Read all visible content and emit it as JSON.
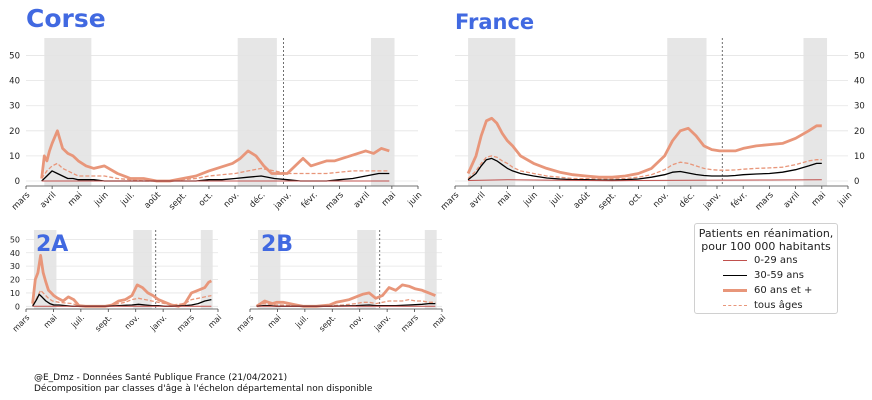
{
  "colors": {
    "title": "#4169e1",
    "age_0_29": "#c0504d",
    "age_30_59": "#000000",
    "age_60_plus": "#e8967a",
    "all_ages": "#e8967a",
    "shade": "#e6e6e6",
    "grid": "#e4e4e4"
  },
  "legend": {
    "title_line1": "Patients en réanimation,",
    "title_line2": "pour 100 000 habitants",
    "items": [
      {
        "key": "age_0_29",
        "label": "0-29 ans"
      },
      {
        "key": "age_30_59",
        "label": "30-59 ans"
      },
      {
        "key": "age_60_plus",
        "label": "60 ans et +"
      },
      {
        "key": "all_ages",
        "label": "tous âges"
      }
    ]
  },
  "credits": {
    "line1": "@E_Dmz - Données Santé Publique France (21/04/2021)",
    "line2": "Décomposition par classes d'âge à l'échelon départemental non disponible"
  },
  "chart_data": [
    {
      "type": "line",
      "title": "Corse",
      "x_ticks": [
        "mars",
        "avril",
        "mai",
        "juin",
        "juil.",
        "août",
        "sept.",
        "oct.",
        "nov.",
        "déc.",
        "janv.",
        "févr.",
        "mars",
        "avril",
        "mai",
        "juin"
      ],
      "y_ticks": [
        0,
        10,
        20,
        30,
        40,
        50
      ],
      "ylim": [
        -2,
        57
      ],
      "xlim": [
        0,
        15
      ],
      "shaded": [
        [
          0.7,
          2.5
        ],
        [
          8.1,
          9.6
        ],
        [
          13.2,
          14.1
        ]
      ],
      "vline": 9.85,
      "grid": true,
      "series": [
        {
          "key": "age_60_plus",
          "x": [
            0.6,
            0.7,
            0.8,
            0.9,
            1.0,
            1.2,
            1.4,
            1.6,
            1.8,
            2.0,
            2.3,
            2.6,
            3.0,
            3.5,
            4.0,
            4.5,
            5.0,
            5.5,
            6.0,
            6.5,
            7.0,
            7.3,
            7.6,
            7.9,
            8.2,
            8.5,
            8.8,
            9.1,
            9.4,
            9.7,
            10.0,
            10.3,
            10.6,
            10.9,
            11.2,
            11.5,
            11.8,
            12.1,
            12.4,
            12.7,
            13.0,
            13.3,
            13.6,
            13.9
          ],
          "y": [
            1,
            10,
            8,
            12,
            15,
            20,
            13,
            11,
            10,
            8,
            6,
            5,
            6,
            3,
            1,
            1,
            0,
            0,
            1,
            2,
            4,
            5,
            6,
            7,
            9,
            12,
            10,
            6,
            3,
            3,
            3,
            6,
            9,
            6,
            7,
            8,
            8,
            9,
            10,
            11,
            12,
            11,
            13,
            12
          ]
        },
        {
          "key": "all_ages",
          "x": [
            0.6,
            0.8,
            1.0,
            1.2,
            1.4,
            1.6,
            1.8,
            2.0,
            2.3,
            2.6,
            3.0,
            3.5,
            4.0,
            4.5,
            5.0,
            5.5,
            6.0,
            6.5,
            7.0,
            7.5,
            8.0,
            8.5,
            9.0,
            9.5,
            10.0,
            10.5,
            11.0,
            11.5,
            12.0,
            12.5,
            13.0,
            13.5,
            13.9
          ],
          "y": [
            1,
            4,
            6,
            7,
            5,
            4,
            3,
            2,
            2,
            2,
            2,
            1,
            0.5,
            0,
            0,
            0,
            0.5,
            1,
            2,
            2.5,
            3,
            4,
            5,
            4,
            3,
            3,
            3,
            3,
            3.5,
            4,
            4,
            4,
            4
          ]
        },
        {
          "key": "age_30_59",
          "x": [
            0.6,
            0.8,
            1.0,
            1.2,
            1.4,
            1.6,
            1.8,
            2.0,
            2.3,
            2.6,
            3.0,
            3.5,
            4.0,
            4.5,
            5.0,
            5.5,
            6.0,
            6.5,
            7.0,
            7.5,
            8.0,
            8.5,
            9.0,
            9.5,
            10.0,
            10.5,
            11.0,
            11.5,
            12.0,
            12.5,
            13.0,
            13.5,
            13.9
          ],
          "y": [
            0,
            2,
            4,
            3,
            2,
            1,
            1,
            0.5,
            0.5,
            0.5,
            0,
            0,
            0,
            0,
            0,
            0,
            0,
            0,
            0.5,
            0.5,
            1,
            1.5,
            2,
            1,
            0.5,
            0,
            0,
            0,
            0.5,
            1,
            2,
            3,
            3
          ]
        },
        {
          "key": "age_0_29",
          "x": [
            0.6,
            13.9
          ],
          "y": [
            0,
            0
          ]
        }
      ]
    },
    {
      "type": "line",
      "title": "France",
      "x_ticks": [
        "mars",
        "avril",
        "mai",
        "juin",
        "juil.",
        "août",
        "sept.",
        "oct.",
        "nov.",
        "déc.",
        "janv.",
        "févr.",
        "mars",
        "avril",
        "mai",
        "juin"
      ],
      "y_ticks": [
        0,
        10,
        20,
        30,
        40,
        50
      ],
      "ylim": [
        -2,
        57
      ],
      "xlim": [
        0,
        15
      ],
      "shaded": [
        [
          0.5,
          2.3
        ],
        [
          8.1,
          9.6
        ],
        [
          13.3,
          14.2
        ]
      ],
      "vline": 10.2,
      "grid": true,
      "series": [
        {
          "key": "age_60_plus",
          "x": [
            0.5,
            0.8,
            1.0,
            1.2,
            1.4,
            1.6,
            1.8,
            2.0,
            2.2,
            2.5,
            3.0,
            3.5,
            4.0,
            4.5,
            5.0,
            5.5,
            6.0,
            6.5,
            7.0,
            7.5,
            8.0,
            8.3,
            8.6,
            8.9,
            9.2,
            9.5,
            9.8,
            10.1,
            10.4,
            10.7,
            11.0,
            11.5,
            12.0,
            12.5,
            13.0,
            13.5,
            13.8,
            14.0
          ],
          "y": [
            3,
            10,
            18,
            24,
            25,
            23,
            19,
            16,
            14,
            10,
            7,
            5,
            3.5,
            2.5,
            2,
            1.5,
            1.5,
            2,
            3,
            5,
            10,
            16,
            20,
            21,
            18,
            14,
            12.5,
            12,
            12,
            12,
            13,
            14,
            14.5,
            15,
            17,
            20,
            22,
            22
          ]
        },
        {
          "key": "all_ages",
          "x": [
            0.5,
            0.8,
            1.0,
            1.2,
            1.4,
            1.6,
            1.8,
            2.0,
            2.2,
            2.5,
            3.0,
            3.5,
            4.0,
            4.5,
            5.0,
            5.5,
            6.0,
            6.5,
            7.0,
            7.5,
            8.0,
            8.3,
            8.6,
            8.9,
            9.2,
            9.5,
            9.8,
            10.1,
            10.4,
            10.7,
            11.0,
            11.5,
            12.0,
            12.5,
            13.0,
            13.5,
            13.8,
            14.0
          ],
          "y": [
            1,
            4,
            7,
            9.5,
            10,
            9.5,
            8,
            7,
            5.5,
            4,
            3,
            2,
            1.5,
            1,
            1,
            0.8,
            0.8,
            1,
            1.5,
            2.5,
            4.5,
            6.5,
            7.5,
            7,
            6,
            5,
            4.5,
            4.3,
            4.3,
            4.4,
            4.7,
            5,
            5.2,
            5.5,
            6.5,
            8,
            8.5,
            8.5
          ]
        },
        {
          "key": "age_30_59",
          "x": [
            0.5,
            0.8,
            1.0,
            1.2,
            1.4,
            1.6,
            1.8,
            2.0,
            2.2,
            2.5,
            3.0,
            3.5,
            4.0,
            4.5,
            5.0,
            5.5,
            6.0,
            6.5,
            7.0,
            7.5,
            8.0,
            8.3,
            8.6,
            8.9,
            9.2,
            9.5,
            9.8,
            10.1,
            10.4,
            10.7,
            11.0,
            11.5,
            12.0,
            12.5,
            13.0,
            13.5,
            13.8,
            14.0
          ],
          "y": [
            0.5,
            3,
            6,
            8.5,
            9,
            8,
            6.5,
            5,
            4,
            3,
            2,
            1.2,
            0.8,
            0.5,
            0.5,
            0.3,
            0.3,
            0.5,
            0.8,
            1.5,
            2.5,
            3.5,
            3.8,
            3.2,
            2.6,
            2.2,
            2,
            2,
            2,
            2.2,
            2.5,
            2.8,
            3,
            3.5,
            4.5,
            6,
            7,
            7
          ]
        },
        {
          "key": "age_0_29",
          "x": [
            0.5,
            2.0,
            6.0,
            9.0,
            12.0,
            14.0
          ],
          "y": [
            0.2,
            0.5,
            0.1,
            0.3,
            0.4,
            0.5
          ]
        }
      ]
    },
    {
      "type": "line",
      "title": "2A",
      "x_ticks": [
        "mars",
        "mai",
        "juil.",
        "sept.",
        "nov.",
        "janv.",
        "mars",
        "mai"
      ],
      "y_ticks": [
        0,
        10,
        20,
        30,
        40,
        50
      ],
      "ylim": [
        -2,
        57
      ],
      "xlim": [
        0,
        14.5
      ],
      "shaded": [
        [
          0.6,
          2.3
        ],
        [
          8.1,
          9.5
        ],
        [
          13.2,
          14.1
        ]
      ],
      "vline": 9.8,
      "grid": true,
      "series": [
        {
          "key": "age_60_plus",
          "x": [
            0.5,
            0.7,
            0.9,
            1.1,
            1.3,
            1.5,
            1.7,
            1.9,
            2.1,
            2.4,
            2.8,
            3.2,
            3.6,
            4.0,
            4.5,
            5.0,
            5.5,
            6.0,
            6.5,
            7.0,
            7.5,
            8.0,
            8.4,
            8.8,
            9.2,
            9.6,
            10.0,
            10.5,
            11.0,
            11.5,
            12.0,
            12.5,
            13.0,
            13.5,
            13.8,
            14.0
          ],
          "y": [
            2,
            20,
            25,
            38,
            25,
            18,
            12,
            10,
            8,
            6,
            4,
            7,
            5,
            0.5,
            0,
            0,
            0,
            0,
            1,
            4,
            5,
            8,
            16,
            14,
            10,
            8,
            5,
            3,
            1,
            0,
            2,
            10,
            12,
            14,
            18,
            19
          ]
        },
        {
          "key": "all_ages",
          "x": [
            0.5,
            0.8,
            1.1,
            1.4,
            1.7,
            2.0,
            2.5,
            3.0,
            3.5,
            4.0,
            5.0,
            6.0,
            7.0,
            7.5,
            8.0,
            8.5,
            9.0,
            9.5,
            10.0,
            10.5,
            11.0,
            12.0,
            12.5,
            13.0,
            13.5,
            14.0
          ],
          "y": [
            1,
            6,
            12,
            9,
            6,
            4,
            3,
            2.5,
            2,
            0.5,
            0,
            0,
            2,
            3,
            5,
            6,
            5,
            4,
            3,
            2,
            1,
            2,
            5,
            6,
            7,
            8
          ]
        },
        {
          "key": "age_30_59",
          "x": [
            0.5,
            0.8,
            1.0,
            1.2,
            1.5,
            1.8,
            2.1,
            2.5,
            3.0,
            3.5,
            4.0,
            5.0,
            6.0,
            7.0,
            8.0,
            8.5,
            9.0,
            9.5,
            10.0,
            10.5,
            11.0,
            12.0,
            12.5,
            13.0,
            13.5,
            14.0
          ],
          "y": [
            0,
            5,
            9,
            7,
            4,
            2,
            1,
            1,
            0.5,
            0,
            0,
            0,
            0,
            0.5,
            1,
            1.5,
            1,
            0.5,
            0.5,
            0,
            0,
            0.5,
            1,
            2,
            4,
            5
          ]
        },
        {
          "key": "age_0_29",
          "x": [
            0.5,
            14.0
          ],
          "y": [
            0,
            0
          ]
        }
      ]
    },
    {
      "type": "line",
      "title": "2B",
      "x_ticks": [
        "mars",
        "mai",
        "juil.",
        "sept.",
        "nov.",
        "janv.",
        "mars",
        "mai"
      ],
      "y_ticks": [
        0,
        10,
        20,
        30,
        40,
        50
      ],
      "ylim": [
        -2,
        57
      ],
      "xlim": [
        0,
        14.5
      ],
      "shaded": [
        [
          0.6,
          2.3
        ],
        [
          8.1,
          9.5
        ],
        [
          13.2,
          14.1
        ]
      ],
      "vline": 9.8,
      "grid": true,
      "series": [
        {
          "key": "age_60_plus",
          "x": [
            0.5,
            0.8,
            1.1,
            1.4,
            1.7,
            2.0,
            2.5,
            3.0,
            3.5,
            4.0,
            5.0,
            6.0,
            6.5,
            7.0,
            7.5,
            8.0,
            8.5,
            9.0,
            9.5,
            10.0,
            10.5,
            11.0,
            11.5,
            12.0,
            12.5,
            13.0,
            13.5,
            14.0
          ],
          "y": [
            0,
            2,
            4,
            3,
            2,
            3,
            3,
            2,
            1,
            0,
            0,
            1,
            3,
            4,
            5,
            7,
            9,
            10,
            6,
            8,
            14,
            12,
            16,
            15,
            13,
            12,
            10,
            8
          ]
        },
        {
          "key": "all_ages",
          "x": [
            0.5,
            1.0,
            1.5,
            2.0,
            2.5,
            3.0,
            4.0,
            5.0,
            6.0,
            7.0,
            8.0,
            8.5,
            9.0,
            9.5,
            10.0,
            10.5,
            11.0,
            11.5,
            12.0,
            12.5,
            13.0,
            13.5,
            14.0
          ],
          "y": [
            0,
            2,
            1.5,
            1,
            1,
            0.5,
            0,
            0,
            0.5,
            1,
            2,
            3,
            3,
            2,
            3,
            4,
            4,
            4,
            5,
            4,
            4,
            3,
            3
          ]
        },
        {
          "key": "age_30_59",
          "x": [
            0.5,
            1.0,
            1.5,
            2.0,
            3.0,
            4.0,
            6.0,
            8.0,
            9.0,
            9.5,
            10.0,
            11.0,
            12.0,
            13.0,
            13.5,
            14.0
          ],
          "y": [
            0,
            0.5,
            0.5,
            0,
            0,
            0,
            0,
            0.5,
            1,
            0.5,
            0.5,
            0.5,
            1,
            1.5,
            2,
            2
          ]
        },
        {
          "key": "age_0_29",
          "x": [
            0.5,
            14.0
          ],
          "y": [
            0,
            0
          ]
        }
      ]
    }
  ]
}
